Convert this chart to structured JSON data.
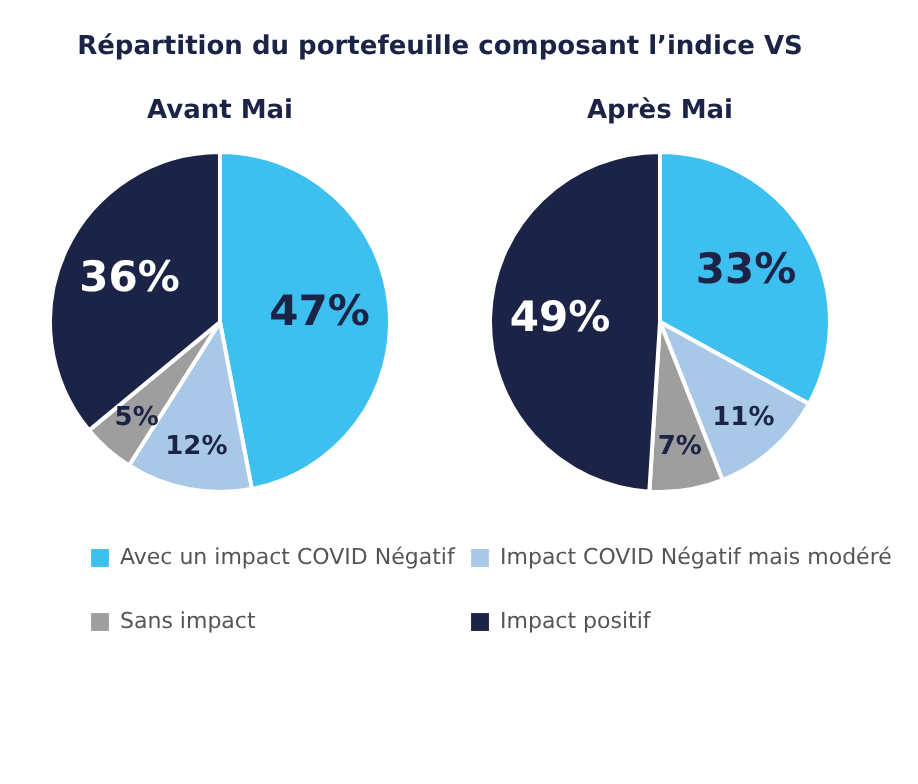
{
  "chart_data": [
    {
      "type": "pie",
      "title": "Avant Mai",
      "annotations": [
        "Répartition du portefeuille composant l’indice VS"
      ],
      "legend": "bottom",
      "categories": [
        "Avec un impact COVID Négatif",
        "Impact COVID Négatif mais modéré",
        "Sans impact",
        "Impact positif"
      ],
      "values": [
        47,
        12,
        5,
        36
      ],
      "value_labels": [
        "47%",
        "12%",
        "5%",
        "36%"
      ],
      "colors": [
        "#3dbff0",
        "#a9c8e8",
        "#9e9e9e",
        "#1b2447"
      ]
    },
    {
      "type": "pie",
      "title": "Après Mai",
      "values": [
        33,
        11,
        7,
        49
      ],
      "value_labels": [
        "33%",
        "11%",
        "7%",
        "49%"
      ],
      "colors": [
        "#3dbff0",
        "#a9c8e8",
        "#9e9e9e",
        "#1b2447"
      ]
    }
  ]
}
